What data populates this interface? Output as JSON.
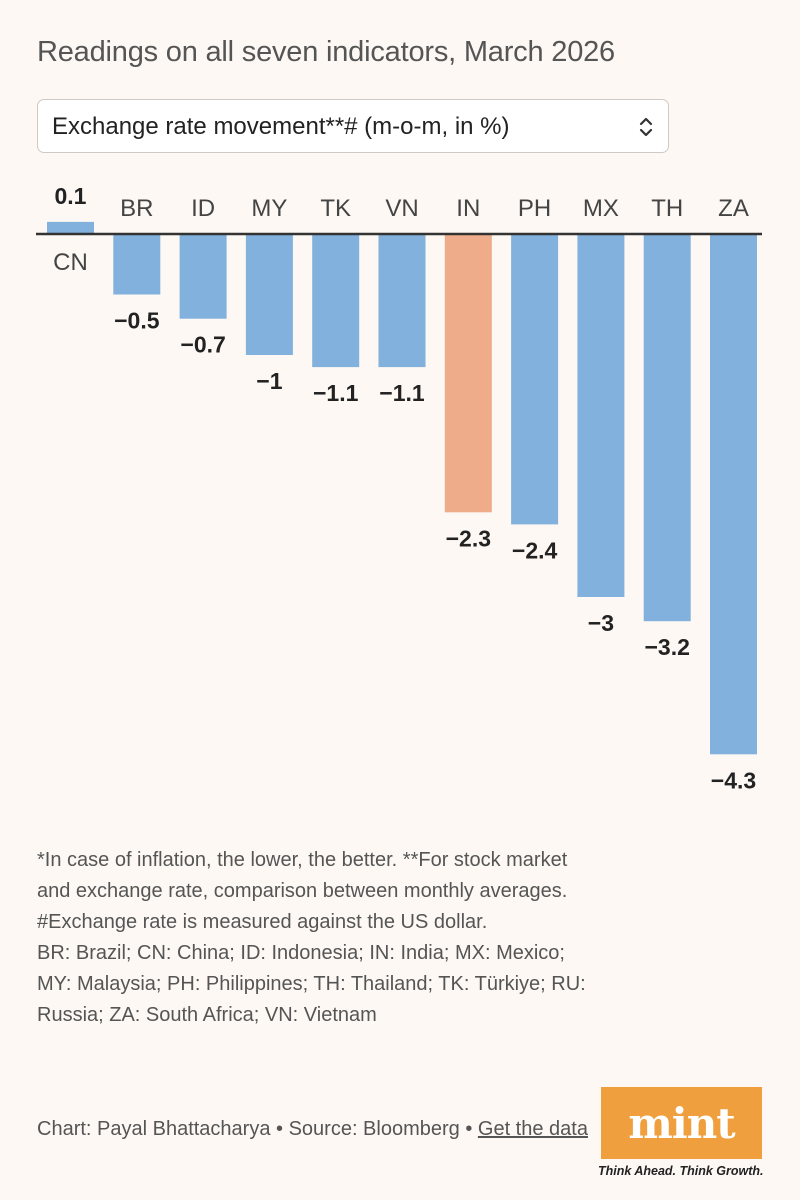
{
  "header": {
    "title": "Readings on all seven indicators, March 2026",
    "selector_value": "Exchange rate movement**# (m-o-m, in %)"
  },
  "colors": {
    "bar": "#82b1dd",
    "highlight": "#eeac8a",
    "axis": "#333333",
    "logo": "#ef9f3d"
  },
  "chart_data": {
    "type": "bar",
    "categories": [
      "CN",
      "BR",
      "ID",
      "MY",
      "TK",
      "VN",
      "IN",
      "PH",
      "MX",
      "TH",
      "ZA"
    ],
    "values": [
      0.1,
      -0.5,
      -0.7,
      -1,
      -1.1,
      -1.1,
      -2.3,
      -2.4,
      -3,
      -3.2,
      -4.3
    ],
    "value_labels": [
      "0.1",
      "−0.5",
      "−0.7",
      "−1",
      "−1.1",
      "−1.1",
      "−2.3",
      "−2.4",
      "−3",
      "−3.2",
      "−4.3"
    ],
    "highlight": "IN",
    "ylim": [
      -4.3,
      0.1
    ],
    "grid": false
  },
  "notes": [
    "*In case of inflation, the lower, the better. **For stock market and exchange rate, comparison between monthly averages. #Exchange rate is measured against the US dollar.",
    "BR: Brazil; CN: China; ID: Indonesia; IN: India; MX: Mexico; MY: Malaysia; PH: Philippines; TH: Thailand; TK: Türkiye; RU: Russia; ZA: South Africa; VN: Vietnam"
  ],
  "footer": {
    "credit": "Chart: Payal Bhattacharya • Source: Bloomberg • ",
    "link": "Get the data",
    "logo": "mint",
    "tagline": "Think Ahead. Think Growth."
  }
}
